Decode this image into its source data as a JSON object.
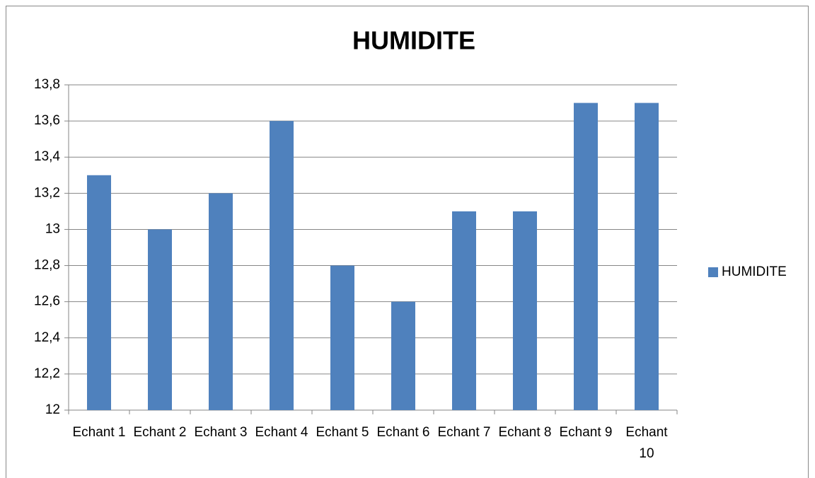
{
  "chart_data": {
    "type": "bar",
    "title": "HUMIDITE",
    "categories": [
      "Echant 1",
      "Echant 2",
      "Echant 3",
      "Echant 4",
      "Echant 5",
      "Echant 6",
      "Echant 7",
      "Echant 8",
      "Echant 9",
      "Echant 10"
    ],
    "series": [
      {
        "name": "HUMIDITE",
        "color": "#4f81bd",
        "values": [
          13.3,
          13.0,
          13.2,
          13.6,
          12.8,
          12.6,
          13.1,
          13.1,
          13.7,
          13.7
        ]
      }
    ],
    "ylim": [
      12,
      13.8
    ],
    "yticks": [
      12,
      {
        "value": 12.2,
        "label": "12,2"
      },
      {
        "value": 12.4,
        "label": "12,4"
      },
      {
        "value": 12.6,
        "label": "12,6"
      },
      {
        "value": 12.8,
        "label": "12,8"
      },
      13,
      {
        "value": 13.2,
        "label": "13,2"
      },
      {
        "value": 13.4,
        "label": "13,4"
      },
      {
        "value": 13.6,
        "label": "13,6"
      },
      {
        "value": 13.8,
        "label": "13,8"
      }
    ],
    "grid": true,
    "legend": "right"
  }
}
